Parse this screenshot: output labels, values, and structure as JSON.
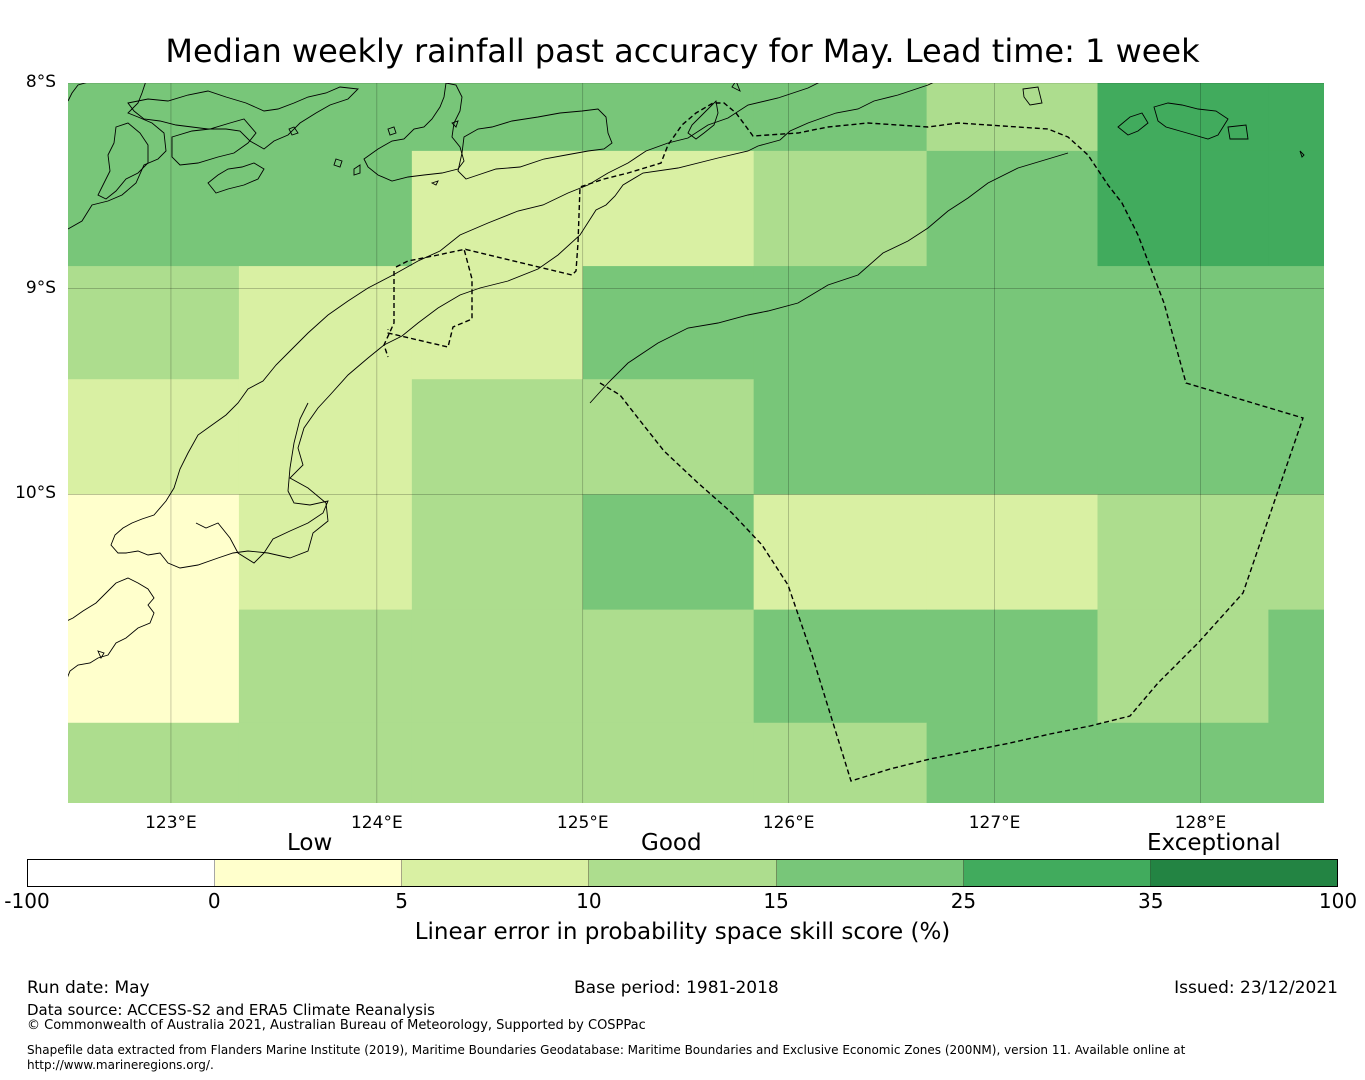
{
  "title": "Median weekly rainfall past accuracy for May. Lead time: 1 week",
  "map": {
    "lon_range": [
      122.5,
      128.6
    ],
    "lat_range": [
      -8.0,
      -11.5
    ],
    "lat_labels": [
      {
        "value": -8,
        "label": "8°S"
      },
      {
        "value": -9,
        "label": "9°S"
      },
      {
        "value": -10,
        "label": "10°S"
      }
    ],
    "lon_labels": [
      {
        "value": 123,
        "label": "123°E"
      },
      {
        "value": 124,
        "label": "124°E"
      },
      {
        "value": 125,
        "label": "125°E"
      },
      {
        "value": 126,
        "label": "126°E"
      },
      {
        "value": 127,
        "label": "127°E"
      },
      {
        "value": 128,
        "label": "128°E"
      }
    ],
    "grid_lines": true,
    "cell_lon_edges": [
      122.5,
      123.33,
      124.17,
      125.0,
      125.83,
      126.67,
      127.5,
      128.33,
      128.6
    ],
    "cell_lat_edges": [
      -8.0,
      -8.33,
      -8.89,
      -9.44,
      -10.0,
      -10.56,
      -11.11,
      -11.5
    ],
    "cell_classes": [
      [
        4,
        4,
        4,
        4,
        4,
        3,
        5,
        5
      ],
      [
        4,
        4,
        2,
        2,
        3,
        4,
        5,
        5
      ],
      [
        3,
        2,
        2,
        4,
        4,
        4,
        4,
        4
      ],
      [
        2,
        2,
        3,
        3,
        4,
        4,
        4,
        4
      ],
      [
        1,
        2,
        3,
        4,
        2,
        2,
        3,
        3
      ],
      [
        1,
        3,
        3,
        3,
        4,
        4,
        3,
        4
      ],
      [
        3,
        3,
        3,
        3,
        3,
        4,
        4,
        4
      ]
    ]
  },
  "legend": {
    "categories": [
      "Low",
      "Good",
      "Exceptional"
    ],
    "ticks": [
      "-100",
      "0",
      "5",
      "10",
      "15",
      "25",
      "35",
      "100"
    ],
    "colors": [
      "#ffffff",
      "#ffffcc",
      "#d9f0a3",
      "#addd8e",
      "#78c679",
      "#41ab5d",
      "#238443"
    ],
    "label": "Linear error in probability space skill score (%)"
  },
  "footer": {
    "run_date": "Run date: May",
    "base_period": "Base period: 1981-2018",
    "issued": "Issued: 23/12/2021",
    "data_source": "Data source: ACCESS-S2 and ERA5 Climate Reanalysis",
    "copyright": "© Commonwealth of Australia 2021, Australian Bureau of Meteorology, Supported by COSPPac",
    "shapefile_line1": "Shapefile data extracted from Flanders Marine Institute (2019), Maritime Boundaries Geodatabase: Maritime Boundaries and Exclusive Economic Zones (200NM), version 11. Available online at",
    "shapefile_line2": "http://www.marineregions.org/."
  }
}
